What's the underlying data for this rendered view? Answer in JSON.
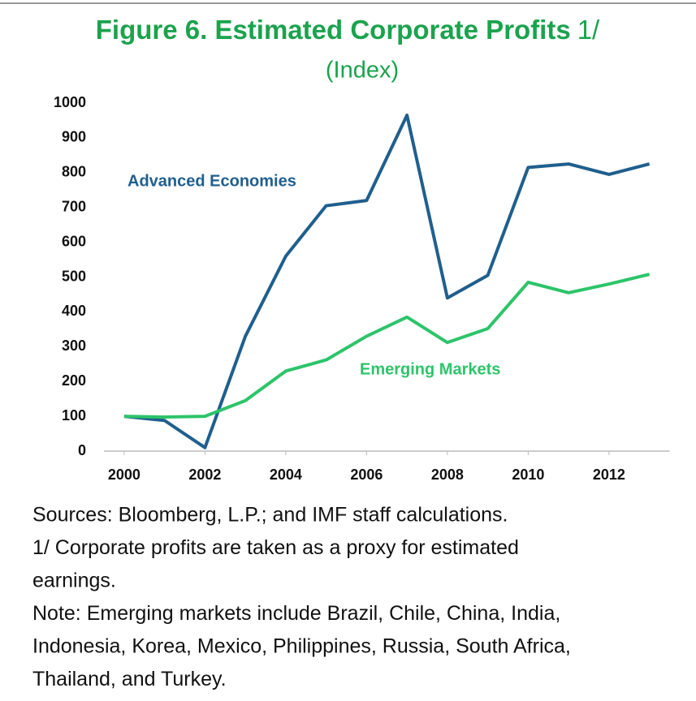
{
  "chart_data": {
    "type": "line",
    "title": "Figure 6. Estimated Corporate Profits",
    "title_note": "1/",
    "subtitle": "(Index)",
    "x": [
      2000,
      2001,
      2002,
      2003,
      2004,
      2005,
      2006,
      2007,
      2008,
      2009,
      2010,
      2011,
      2012,
      2013
    ],
    "series": [
      {
        "name": "Advanced Economies",
        "color": "#1f5f8e",
        "values": [
          100,
          88,
          10,
          330,
          560,
          705,
          720,
          965,
          440,
          505,
          815,
          825,
          795,
          825
        ]
      },
      {
        "name": "Emerging Markets",
        "color": "#2dc46a",
        "values": [
          100,
          98,
          100,
          145,
          230,
          262,
          330,
          385,
          312,
          352,
          485,
          455,
          480,
          508
        ]
      }
    ],
    "xlim": [
      1999.5,
      2013.5
    ],
    "xticks": [
      2000,
      2002,
      2004,
      2006,
      2008,
      2010,
      2012
    ],
    "ylim": [
      0,
      1000
    ],
    "yticks": [
      0,
      100,
      200,
      300,
      400,
      500,
      600,
      700,
      800,
      900,
      1000
    ],
    "grid": false,
    "notes": [
      "Sources: Bloomberg, L.P.; and IMF staff calculations.",
      "1/ Corporate profits are taken as a proxy for estimated",
      "earnings.",
      "Note: Emerging markets include Brazil, Chile, China, India,",
      "Indonesia, Korea, Mexico, Philippines, Russia, South Africa,",
      "Thailand, and Turkey."
    ]
  }
}
